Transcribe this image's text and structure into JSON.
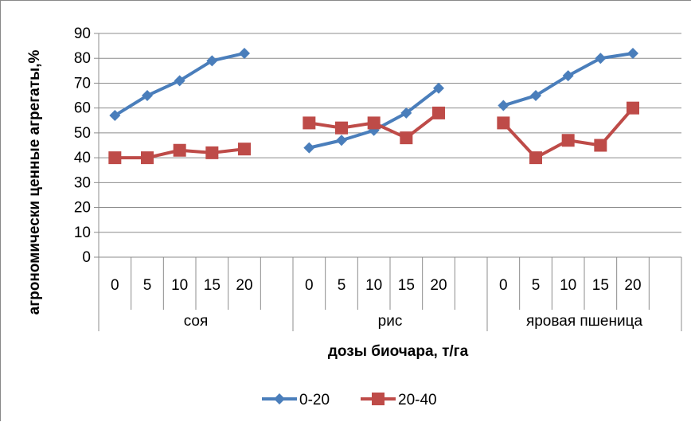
{
  "chart_data": {
    "type": "line",
    "title": "",
    "xlabel": "дозы биочара, т/га",
    "ylabel": "агрономически ценные агрегаты,%",
    "ylim": [
      0,
      90
    ],
    "yticks": [
      "0",
      "10",
      "20",
      "30",
      "40",
      "50",
      "60",
      "70",
      "80",
      "90"
    ],
    "grid": true,
    "legend_position": "bottom",
    "groups": [
      {
        "label": "соя",
        "categories": [
          "0",
          "5",
          "10",
          "15",
          "20"
        ]
      },
      {
        "label": "рис",
        "categories": [
          "0",
          "5",
          "10",
          "15",
          "20"
        ]
      },
      {
        "label": "яровая пшеница",
        "categories": [
          "0",
          "5",
          "10",
          "15",
          "20"
        ]
      }
    ],
    "series": [
      {
        "name": "0-20",
        "color": "#4a7ebb",
        "marker": "diamond",
        "values": [
          [
            57,
            65,
            71,
            79,
            82
          ],
          [
            44,
            47,
            51,
            58,
            68
          ],
          [
            61,
            65,
            73,
            80,
            82
          ]
        ]
      },
      {
        "name": "20-40",
        "color": "#be4b48",
        "marker": "square",
        "values": [
          [
            40,
            40,
            43,
            42,
            43.5
          ],
          [
            54,
            52,
            54,
            48,
            58
          ],
          [
            54,
            40,
            47,
            45,
            60
          ]
        ]
      }
    ]
  }
}
